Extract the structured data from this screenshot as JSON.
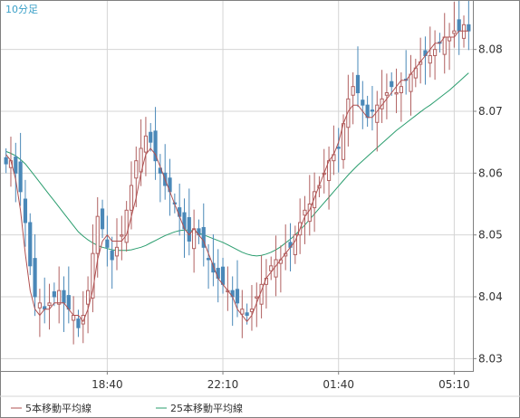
{
  "chart_data": {
    "type": "candlestick",
    "interval_label": "10分足",
    "y_ticks": [
      8.03,
      8.04,
      8.05,
      8.06,
      8.07,
      8.08
    ],
    "ylim": [
      8.028,
      8.088
    ],
    "x_ticks": [
      "18:40",
      "22:10",
      "01:40",
      "05:10"
    ],
    "x_tick_candle_index": [
      21,
      45,
      69,
      93
    ],
    "legend": [
      {
        "name": "5本移動平均線",
        "color": "#b05050"
      },
      {
        "name": "25本移動平均線",
        "color": "#2a9d6e"
      }
    ],
    "colors": {
      "up": "#b06060",
      "down": "#4a88b8",
      "grid": "#d4d4d4",
      "axis": "#808080",
      "ma5": "#b05050",
      "ma25": "#2a9d6e",
      "label": "#3aa0c8"
    },
    "closes": [
      8.0615,
      8.062,
      8.06,
      8.057,
      8.052,
      8.045,
      8.04,
      8.039,
      8.038,
      8.039,
      8.04,
      8.041,
      8.039,
      8.038,
      8.037,
      8.035,
      8.037,
      8.041,
      8.047,
      8.053,
      8.051,
      8.048,
      8.046,
      8.048,
      8.05,
      8.054,
      8.058,
      8.062,
      8.064,
      8.066,
      8.065,
      8.062,
      8.06,
      8.058,
      8.057,
      8.055,
      8.053,
      8.051,
      8.049,
      8.051,
      8.05,
      8.048,
      8.046,
      8.044,
      8.043,
      8.042,
      8.041,
      8.04,
      8.039,
      8.038,
      8.037,
      8.038,
      8.04,
      8.042,
      8.043,
      8.045,
      8.046,
      8.046,
      8.047,
      8.048,
      8.05,
      8.052,
      8.054,
      8.055,
      8.057,
      8.058,
      8.06,
      8.062,
      8.063,
      8.064,
      8.068,
      8.072,
      8.074,
      8.073,
      8.071,
      8.069,
      8.07,
      8.071,
      8.072,
      8.073,
      8.074,
      8.073,
      8.074,
      8.075,
      8.076,
      8.077,
      8.078,
      8.079,
      8.079,
      8.08,
      8.081,
      8.082,
      8.082,
      8.083,
      8.083,
      8.084,
      8.083
    ],
    "ma5": [
      8.063,
      8.062,
      8.059,
      8.054,
      8.047,
      8.041,
      8.038,
      8.037,
      8.038,
      8.038,
      8.039,
      8.039,
      8.039,
      8.038,
      8.037,
      8.037,
      8.036,
      8.038,
      8.041,
      8.046,
      8.049,
      8.05,
      8.049,
      8.049,
      8.049,
      8.05,
      8.053,
      8.056,
      8.06,
      8.063,
      8.064,
      8.063,
      8.061,
      8.059,
      8.057,
      8.055,
      8.053,
      8.051,
      8.05,
      8.051,
      8.05,
      8.049,
      8.047,
      8.045,
      8.043,
      8.042,
      8.041,
      8.04,
      8.038,
      8.037,
      8.036,
      8.037,
      8.039,
      8.041,
      8.043,
      8.044,
      8.045,
      8.046,
      8.047,
      8.048,
      8.049,
      8.051,
      8.053,
      8.054,
      8.056,
      8.058,
      8.06,
      8.062,
      8.063,
      8.065,
      8.068,
      8.07,
      8.071,
      8.071,
      8.07,
      8.069,
      8.069,
      8.07,
      8.071,
      8.072,
      8.073,
      8.074,
      8.075,
      8.075,
      8.076,
      8.077,
      8.078,
      8.079,
      8.08,
      8.081,
      8.081,
      8.082,
      8.082,
      8.082,
      8.083,
      8.083,
      8.083
    ],
    "ma25": [
      8.0635,
      8.0632,
      8.0628,
      8.0622,
      8.0615,
      8.0605,
      8.0595,
      8.0585,
      8.0575,
      8.0565,
      8.0555,
      8.0545,
      8.0535,
      8.0525,
      8.0515,
      8.0505,
      8.0498,
      8.0492,
      8.0487,
      8.0483,
      8.048,
      8.0478,
      8.0476,
      8.0475,
      8.0475,
      8.0475,
      8.0476,
      8.0478,
      8.048,
      8.0483,
      8.0487,
      8.0491,
      8.0495,
      8.0499,
      8.0502,
      8.0505,
      8.0507,
      8.0508,
      8.0508,
      8.0506,
      8.0503,
      8.05,
      8.0497,
      8.0494,
      8.0491,
      8.0488,
      8.0484,
      8.048,
      8.0476,
      8.0472,
      8.0469,
      8.0467,
      8.0466,
      8.0467,
      8.0469,
      8.0472,
      8.0476,
      8.0481,
      8.0487,
      8.0493,
      8.05,
      8.0508,
      8.0516,
      8.0525,
      8.0534,
      8.0543,
      8.0552,
      8.0561,
      8.057,
      8.0579,
      8.0588,
      8.0597,
      8.0605,
      8.0613,
      8.062,
      8.0627,
      8.0634,
      8.0641,
      8.0648,
      8.0655,
      8.0662,
      8.0669,
      8.0675,
      8.0681,
      8.0687,
      8.0693,
      8.0699,
      8.0705,
      8.071,
      8.0716,
      8.0722,
      8.0728,
      8.0734,
      8.0741,
      8.0748,
      8.0755,
      8.0762
    ]
  }
}
